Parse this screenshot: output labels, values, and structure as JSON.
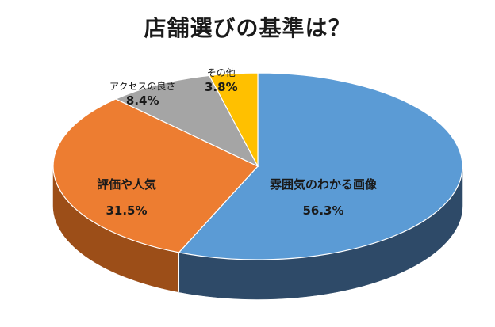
{
  "chart_data": {
    "type": "pie",
    "title": "店舗選びの基準は？",
    "slices": [
      {
        "label": "雰囲気のわかる画像",
        "value": 56.3,
        "display": "56.3%",
        "color": "#5b9bd5",
        "side_color": "#2e4a68"
      },
      {
        "label": "評価や人気",
        "value": 31.5,
        "display": "31.5%",
        "color": "#ed7d31",
        "side_color": "#9c4e18"
      },
      {
        "label": "アクセスの良さ",
        "value": 8.4,
        "display": "8.4%",
        "color": "#a5a5a5",
        "side_color": "#6b6b6b"
      },
      {
        "label": "その他",
        "value": 3.8,
        "display": "3.8%",
        "color": "#ffc000",
        "side_color": "#b38600"
      }
    ]
  }
}
